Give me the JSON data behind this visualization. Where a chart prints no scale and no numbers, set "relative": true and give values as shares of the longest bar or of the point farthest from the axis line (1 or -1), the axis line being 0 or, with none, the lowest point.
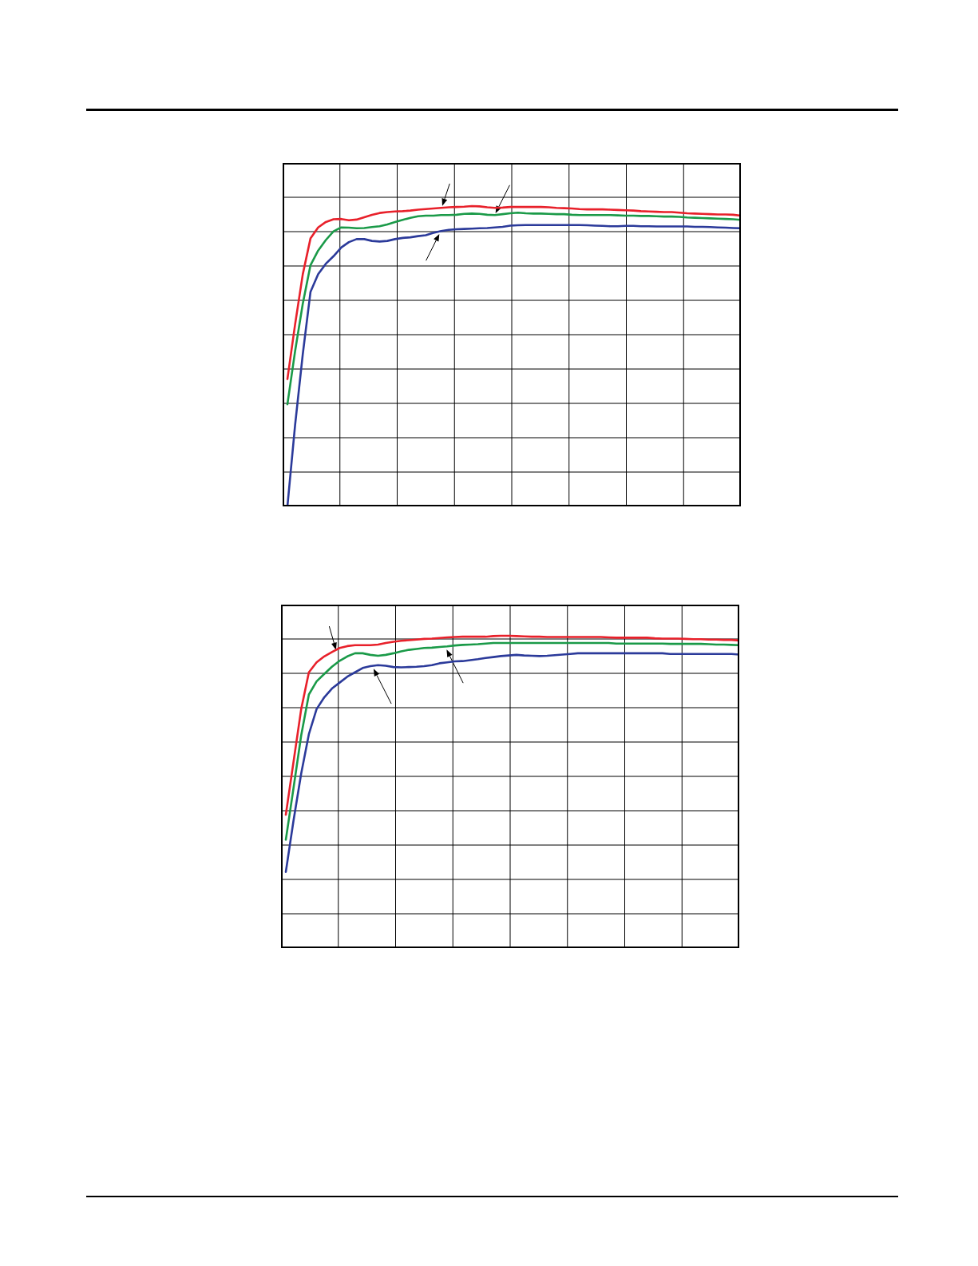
{
  "chart_data": [
    {
      "type": "line",
      "relative": true,
      "grid": true,
      "tick_labels": false,
      "categories": [
        null,
        null,
        null,
        null,
        null,
        null,
        null,
        null,
        null,
        null,
        null,
        null,
        null,
        null,
        null,
        null,
        null,
        null,
        null,
        null,
        null,
        null,
        null,
        null,
        null,
        null,
        null,
        null,
        null,
        null,
        null,
        null,
        null,
        null,
        null,
        null,
        null,
        null,
        null,
        null,
        null,
        null,
        null,
        null,
        null,
        null,
        null,
        null,
        null,
        null,
        null,
        null,
        null,
        null,
        null,
        null,
        null,
        null,
        null,
        null
      ],
      "series": [
        {
          "color": "#e8202a",
          "values": [
            0.424,
            0.606,
            0.773,
            0.892,
            0.929,
            0.947,
            0.956,
            0.957,
            0.953,
            0.955,
            0.963,
            0.971,
            0.977,
            0.98,
            0.982,
            0.983,
            0.985,
            0.988,
            0.99,
            0.992,
            0.994,
            0.996,
            0.997,
            0.998,
            1.0,
            0.999,
            0.996,
            0.994,
            0.995,
            0.997,
            0.997,
            0.997,
            0.997,
            0.997,
            0.996,
            0.994,
            0.993,
            0.992,
            0.99,
            0.989,
            0.989,
            0.989,
            0.988,
            0.987,
            0.986,
            0.985,
            0.983,
            0.982,
            0.981,
            0.98,
            0.98,
            0.978,
            0.976,
            0.975,
            0.974,
            0.973,
            0.972,
            0.972,
            0.971,
            0.968
          ]
        },
        {
          "color": "#1a9a48",
          "values": [
            0.34,
            0.517,
            0.675,
            0.803,
            0.852,
            0.887,
            0.916,
            0.929,
            0.928,
            0.926,
            0.927,
            0.93,
            0.933,
            0.939,
            0.947,
            0.954,
            0.961,
            0.966,
            0.968,
            0.968,
            0.97,
            0.97,
            0.971,
            0.974,
            0.975,
            0.974,
            0.971,
            0.97,
            0.973,
            0.976,
            0.978,
            0.976,
            0.975,
            0.975,
            0.974,
            0.973,
            0.973,
            0.971,
            0.97,
            0.97,
            0.97,
            0.97,
            0.97,
            0.969,
            0.968,
            0.968,
            0.967,
            0.967,
            0.966,
            0.965,
            0.965,
            0.964,
            0.962,
            0.961,
            0.96,
            0.959,
            0.958,
            0.957,
            0.956,
            0.954
          ]
        },
        {
          "color": "#2b3a9a",
          "values": [
            0,
            0.271,
            0.507,
            0.714,
            0.773,
            0.808,
            0.833,
            0.862,
            0.88,
            0.89,
            0.89,
            0.884,
            0.882,
            0.884,
            0.89,
            0.894,
            0.896,
            0.9,
            0.903,
            0.911,
            0.917,
            0.921,
            0.923,
            0.924,
            0.925,
            0.926,
            0.927,
            0.929,
            0.931,
            0.935,
            0.936,
            0.937,
            0.937,
            0.937,
            0.937,
            0.937,
            0.937,
            0.937,
            0.937,
            0.936,
            0.935,
            0.934,
            0.933,
            0.933,
            0.934,
            0.934,
            0.933,
            0.933,
            0.932,
            0.932,
            0.932,
            0.932,
            0.932,
            0.931,
            0.931,
            0.93,
            0.929,
            0.928,
            0.927,
            0.926
          ]
        }
      ]
    },
    {
      "type": "line",
      "relative": true,
      "grid": true,
      "tick_labels": false,
      "categories": [
        null,
        null,
        null,
        null,
        null,
        null,
        null,
        null,
        null,
        null,
        null,
        null,
        null,
        null,
        null,
        null,
        null,
        null,
        null,
        null,
        null,
        null,
        null,
        null,
        null,
        null,
        null,
        null,
        null,
        null,
        null,
        null,
        null,
        null,
        null,
        null,
        null,
        null,
        null,
        null,
        null,
        null,
        null,
        null,
        null,
        null,
        null,
        null,
        null,
        null,
        null,
        null,
        null,
        null,
        null,
        null,
        null,
        null,
        null,
        null
      ],
      "series": [
        {
          "color": "#e8202a",
          "values": [
            0.427,
            0.596,
            0.765,
            0.883,
            0.915,
            0.934,
            0.948,
            0.961,
            0.967,
            0.97,
            0.97,
            0.97,
            0.972,
            0.977,
            0.981,
            0.984,
            0.986,
            0.988,
            0.99,
            0.991,
            0.993,
            0.995,
            0.996,
            0.997,
            0.997,
            0.997,
            0.997,
            0.999,
            1.0,
            1.0,
            0.999,
            0.998,
            0.997,
            0.997,
            0.996,
            0.996,
            0.996,
            0.996,
            0.996,
            0.996,
            0.996,
            0.996,
            0.995,
            0.994,
            0.994,
            0.994,
            0.994,
            0.994,
            0.992,
            0.991,
            0.991,
            0.991,
            0.99,
            0.989,
            0.989,
            0.988,
            0.988,
            0.987,
            0.987,
            0.985
          ]
        },
        {
          "color": "#1a9a48",
          "values": [
            0.347,
            0.512,
            0.681,
            0.812,
            0.854,
            0.878,
            0.901,
            0.92,
            0.934,
            0.944,
            0.944,
            0.939,
            0.936,
            0.939,
            0.944,
            0.95,
            0.955,
            0.958,
            0.961,
            0.962,
            0.964,
            0.966,
            0.969,
            0.971,
            0.972,
            0.973,
            0.975,
            0.977,
            0.977,
            0.977,
            0.977,
            0.977,
            0.977,
            0.977,
            0.977,
            0.977,
            0.977,
            0.977,
            0.977,
            0.977,
            0.977,
            0.977,
            0.977,
            0.975,
            0.975,
            0.975,
            0.975,
            0.975,
            0.975,
            0.975,
            0.974,
            0.974,
            0.974,
            0.974,
            0.974,
            0.973,
            0.972,
            0.972,
            0.971,
            0.97
          ]
        },
        {
          "color": "#2b3a9a",
          "values": [
            0.244,
            0.408,
            0.559,
            0.685,
            0.765,
            0.803,
            0.831,
            0.85,
            0.869,
            0.883,
            0.897,
            0.903,
            0.906,
            0.904,
            0.9,
            0.899,
            0.9,
            0.901,
            0.903,
            0.906,
            0.912,
            0.915,
            0.918,
            0.919,
            0.922,
            0.925,
            0.929,
            0.932,
            0.935,
            0.937,
            0.939,
            0.937,
            0.936,
            0.935,
            0.936,
            0.938,
            0.94,
            0.942,
            0.944,
            0.944,
            0.944,
            0.944,
            0.944,
            0.944,
            0.944,
            0.944,
            0.944,
            0.944,
            0.944,
            0.944,
            0.942,
            0.942,
            0.942,
            0.942,
            0.942,
            0.942,
            0.942,
            0.942,
            0.942,
            0.94
          ]
        }
      ]
    }
  ]
}
